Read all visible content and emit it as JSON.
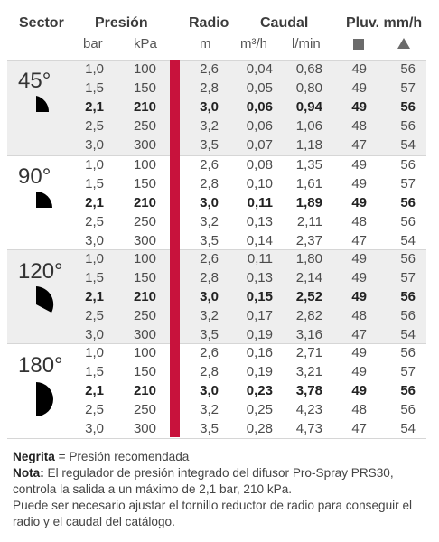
{
  "header": {
    "sector": "Sector",
    "presion": "Presión",
    "radio": "Radio",
    "caudal": "Caudal",
    "pluv": "Pluv. mm/h",
    "bar": "bar",
    "kpa": "kPa",
    "m": "m",
    "m3h": "m³/h",
    "lmin": "l/min",
    "square_icon": "square-icon",
    "triangle_icon": "triangle-icon"
  },
  "colors": {
    "accent_red": "#c8123c",
    "band_gray": "#eeeeee",
    "icon_black": "#000000"
  },
  "sectors": [
    {
      "label": "45°",
      "icon": "sector-45-icon",
      "rows": [
        [
          "1,0",
          "100",
          "2,6",
          "0,04",
          "0,68",
          "49",
          "56"
        ],
        [
          "1,5",
          "150",
          "2,8",
          "0,05",
          "0,80",
          "49",
          "57"
        ],
        [
          "2,1",
          "210",
          "3,0",
          "0,06",
          "0,94",
          "49",
          "56"
        ],
        [
          "2,5",
          "250",
          "3,2",
          "0,06",
          "1,06",
          "48",
          "56"
        ],
        [
          "3,0",
          "300",
          "3,5",
          "0,07",
          "1,18",
          "47",
          "54"
        ]
      ]
    },
    {
      "label": "90°",
      "icon": "sector-90-icon",
      "rows": [
        [
          "1,0",
          "100",
          "2,6",
          "0,08",
          "1,35",
          "49",
          "56"
        ],
        [
          "1,5",
          "150",
          "2,8",
          "0,10",
          "1,61",
          "49",
          "57"
        ],
        [
          "2,1",
          "210",
          "3,0",
          "0,11",
          "1,89",
          "49",
          "56"
        ],
        [
          "2,5",
          "250",
          "3,2",
          "0,13",
          "2,11",
          "48",
          "56"
        ],
        [
          "3,0",
          "300",
          "3,5",
          "0,14",
          "2,37",
          "47",
          "54"
        ]
      ]
    },
    {
      "label": "120°",
      "icon": "sector-120-icon",
      "rows": [
        [
          "1,0",
          "100",
          "2,6",
          "0,11",
          "1,80",
          "49",
          "56"
        ],
        [
          "1,5",
          "150",
          "2,8",
          "0,13",
          "2,14",
          "49",
          "57"
        ],
        [
          "2,1",
          "210",
          "3,0",
          "0,15",
          "2,52",
          "49",
          "56"
        ],
        [
          "2,5",
          "250",
          "3,2",
          "0,17",
          "2,82",
          "48",
          "56"
        ],
        [
          "3,0",
          "300",
          "3,5",
          "0,19",
          "3,16",
          "47",
          "54"
        ]
      ]
    },
    {
      "label": "180°",
      "icon": "sector-180-icon",
      "rows": [
        [
          "1,0",
          "100",
          "2,6",
          "0,16",
          "2,71",
          "49",
          "56"
        ],
        [
          "1,5",
          "150",
          "2,8",
          "0,19",
          "3,21",
          "49",
          "57"
        ],
        [
          "2,1",
          "210",
          "3,0",
          "0,23",
          "3,78",
          "49",
          "56"
        ],
        [
          "2,5",
          "250",
          "3,2",
          "0,25",
          "4,23",
          "48",
          "56"
        ],
        [
          "3,0",
          "300",
          "3,5",
          "0,28",
          "4,73",
          "47",
          "54"
        ]
      ]
    }
  ],
  "notes": {
    "negrita_label": "Negrita",
    "negrita_text": " = Presión recomendada",
    "nota_label": "Nota:",
    "nota_text": " El regulador de presión integrado del difusor Pro-Spray PRS30, controla la salida a un máximo de 2,1 bar, 210 kPa.",
    "extra_text": "Puede ser necesario ajustar el tornillo reductor de radio para conseguir el radio y el caudal del catálogo."
  }
}
